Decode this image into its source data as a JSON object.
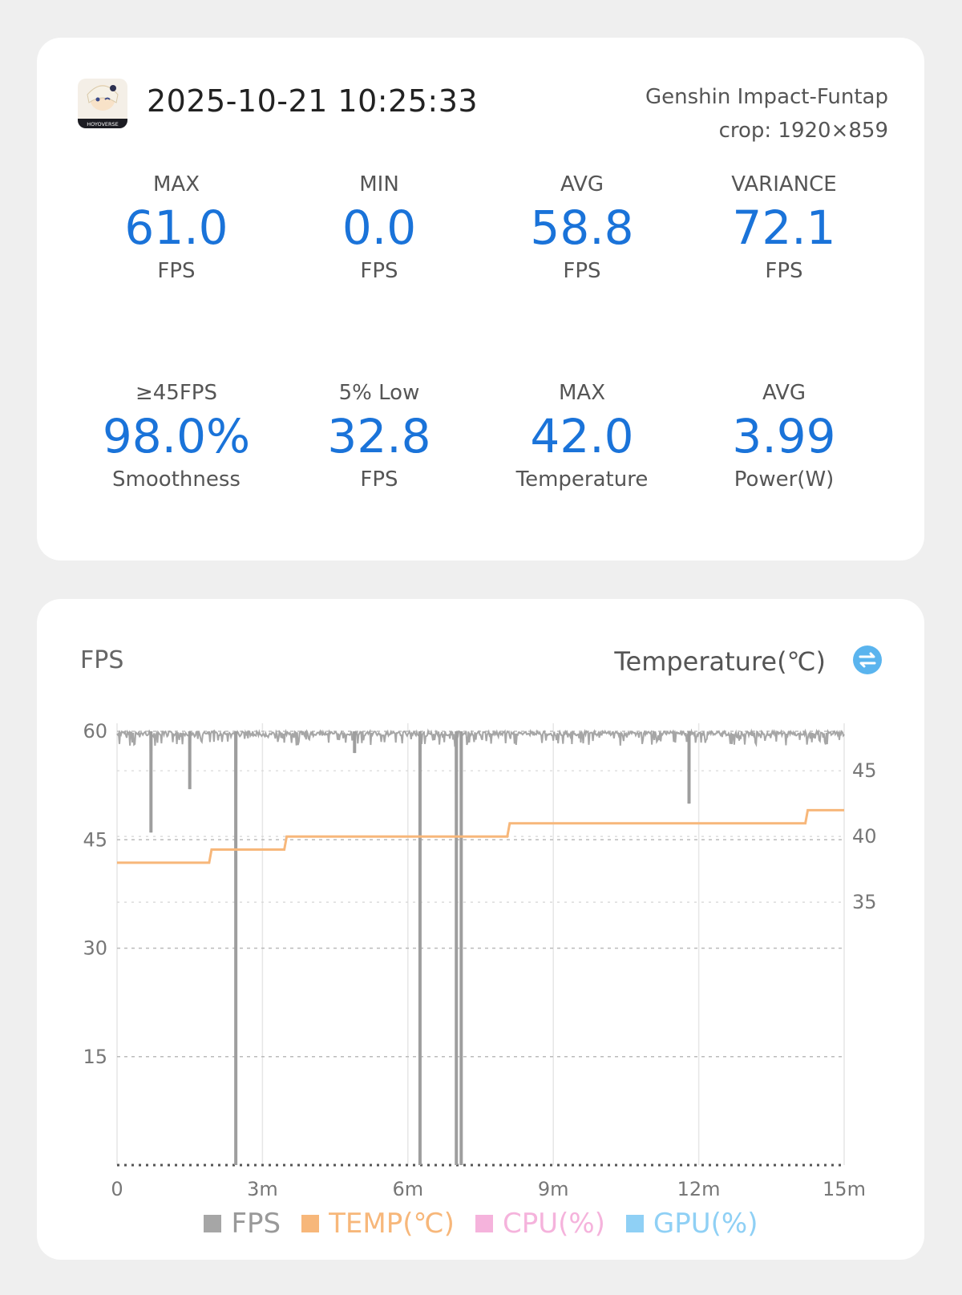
{
  "header": {
    "datetime": "2025-10-21 10:25:33",
    "game": "Genshin Impact-Funtap",
    "crop": "crop: 1920×859",
    "icon_label": "HOYOVERSE"
  },
  "stats": [
    {
      "label": "MAX",
      "value": "61.0",
      "unit": "FPS"
    },
    {
      "label": "MIN",
      "value": "0.0",
      "unit": "FPS"
    },
    {
      "label": "AVG",
      "value": "58.8",
      "unit": "FPS"
    },
    {
      "label": "VARIANCE",
      "value": "72.1",
      "unit": "FPS"
    },
    {
      "label": "≥45FPS",
      "value": "98.0%",
      "unit": "Smoothness"
    },
    {
      "label": "5% Low",
      "value": "32.8",
      "unit": "FPS"
    },
    {
      "label": "MAX",
      "value": "42.0",
      "unit": "Temperature"
    },
    {
      "label": "AVG",
      "value": "3.99",
      "unit": "Power(W)"
    }
  ],
  "chart": {
    "left_title": "FPS",
    "right_title": "Temperature(℃)",
    "legend": [
      {
        "label": "FPS",
        "color": "#a6a6a6"
      },
      {
        "label": "TEMP(℃)",
        "color": "#f7b77a"
      },
      {
        "label": "CPU(%)",
        "color": "#f5b3dc"
      },
      {
        "label": "GPU(%)",
        "color": "#8fd0f5"
      }
    ]
  },
  "chart_data": {
    "type": "line",
    "x_ticks": [
      "0",
      "3m",
      "6m",
      "9m",
      "12m",
      "15m"
    ],
    "xlim": [
      0,
      15
    ],
    "y_left_ticks": [
      15,
      30,
      45,
      60
    ],
    "y_left_lim": [
      0,
      60
    ],
    "y_right_ticks": [
      35,
      40,
      45
    ],
    "y_right_lim": [
      15,
      48
    ],
    "grid": true,
    "legend_position": "bottom",
    "series": [
      {
        "name": "FPS",
        "axis": "left",
        "x": [
          0,
          0.1,
          0.7,
          0.75,
          1.2,
          1.5,
          1.6,
          2.4,
          2.45,
          2.5,
          3.4,
          4.9,
          5.1,
          6.2,
          6.25,
          6.3,
          6.9,
          7.0,
          7.1,
          7.2,
          7.25,
          8.0,
          11.8,
          12.0,
          15.0
        ],
        "y": [
          60,
          59,
          46,
          60,
          59,
          52,
          59,
          59,
          0,
          60,
          59,
          57,
          59,
          59,
          0,
          60,
          59,
          0,
          0,
          60,
          59,
          59,
          50,
          59,
          60
        ]
      },
      {
        "name": "TEMP(℃)",
        "axis": "right",
        "x": [
          0,
          1.9,
          1.95,
          3.45,
          3.5,
          8.05,
          8.1,
          14.2,
          14.25,
          15.0
        ],
        "y": [
          38,
          38,
          39,
          39,
          40,
          40,
          41,
          41,
          42,
          42
        ]
      }
    ]
  }
}
